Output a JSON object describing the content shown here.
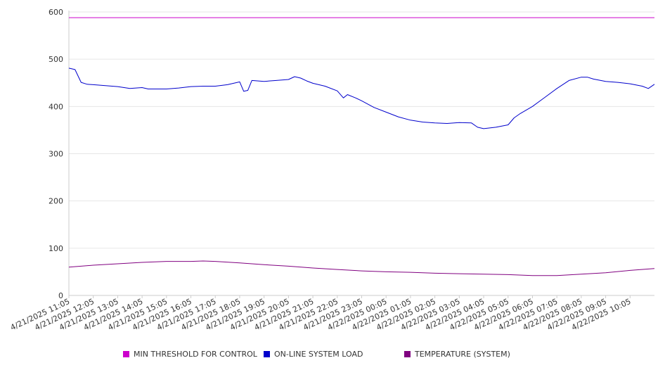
{
  "chart_data": {
    "type": "line",
    "title": "",
    "xlabel": "",
    "ylabel": "",
    "ylim": [
      0,
      600
    ],
    "yticks": [
      "0",
      "100",
      "200",
      "300",
      "400",
      "500",
      "600"
    ],
    "grid": true,
    "legend_position": "bottom",
    "xtick_labels": [
      "4/21/2025 11:05",
      "4/21/2025 12:05",
      "4/21/2025 13:05",
      "4/21/2025 14:05",
      "4/21/2025 15:05",
      "4/21/2025 16:05",
      "4/21/2025 17:05",
      "4/21/2025 18:05",
      "4/21/2025 19:05",
      "4/21/2025 20:05",
      "4/21/2025 21:05",
      "4/21/2025 22:05",
      "4/21/2025 23:05",
      "4/22/2025 00:05",
      "4/22/2025 01:05",
      "4/22/2025 02:05",
      "4/22/2025 03:05",
      "4/22/2025 04:05",
      "4/22/2025 05:05",
      "4/22/2025 06:05",
      "4/22/2025 07:05",
      "4/22/2025 08:05",
      "4/22/2025 09:05",
      "4/22/2025 10:05"
    ],
    "series": [
      {
        "name": "MIN THRESHOLD FOR CONTROL",
        "color": "#cc00cc",
        "points": [
          [
            "4/21/2025 11:05",
            588
          ],
          [
            "4/22/2025 11:05",
            588
          ]
        ]
      },
      {
        "name": "ON-LINE SYSTEM LOAD",
        "color": "#0000cc",
        "points": [
          [
            "4/21/2025 11:05",
            481
          ],
          [
            "4/21/2025 11:20",
            478
          ],
          [
            "4/21/2025 11:35",
            451
          ],
          [
            "4/21/2025 11:50",
            447
          ],
          [
            "4/21/2025 12:05",
            446
          ],
          [
            "4/21/2025 12:35",
            444
          ],
          [
            "4/21/2025 13:05",
            442
          ],
          [
            "4/21/2025 13:35",
            438
          ],
          [
            "4/21/2025 14:05",
            440
          ],
          [
            "4/21/2025 14:20",
            437
          ],
          [
            "4/21/2025 14:50",
            437
          ],
          [
            "4/21/2025 15:05",
            437
          ],
          [
            "4/21/2025 15:35",
            439
          ],
          [
            "4/21/2025 16:05",
            442
          ],
          [
            "4/21/2025 16:35",
            443
          ],
          [
            "4/21/2025 17:05",
            443
          ],
          [
            "4/21/2025 17:35",
            446
          ],
          [
            "4/21/2025 18:05",
            452
          ],
          [
            "4/21/2025 18:15",
            432
          ],
          [
            "4/21/2025 18:25",
            434
          ],
          [
            "4/21/2025 18:35",
            455
          ],
          [
            "4/21/2025 19:05",
            453
          ],
          [
            "4/21/2025 19:35",
            455
          ],
          [
            "4/21/2025 20:05",
            457
          ],
          [
            "4/21/2025 20:20",
            463
          ],
          [
            "4/21/2025 20:35",
            460
          ],
          [
            "4/21/2025 20:50",
            454
          ],
          [
            "4/21/2025 21:05",
            449
          ],
          [
            "4/21/2025 21:35",
            443
          ],
          [
            "4/21/2025 22:05",
            433
          ],
          [
            "4/21/2025 22:20",
            418
          ],
          [
            "4/21/2025 22:30",
            425
          ],
          [
            "4/21/2025 22:50",
            418
          ],
          [
            "4/21/2025 23:05",
            412
          ],
          [
            "4/21/2025 23:35",
            398
          ],
          [
            "4/22/2025 00:05",
            388
          ],
          [
            "4/22/2025 00:35",
            378
          ],
          [
            "4/22/2025 01:05",
            371
          ],
          [
            "4/22/2025 01:35",
            367
          ],
          [
            "4/22/2025 02:05",
            365
          ],
          [
            "4/22/2025 02:35",
            364
          ],
          [
            "4/22/2025 03:05",
            366
          ],
          [
            "4/22/2025 03:35",
            365
          ],
          [
            "4/22/2025 03:50",
            356
          ],
          [
            "4/22/2025 04:05",
            353
          ],
          [
            "4/22/2025 04:35",
            356
          ],
          [
            "4/22/2025 05:05",
            361
          ],
          [
            "4/22/2025 05:20",
            376
          ],
          [
            "4/22/2025 05:35",
            385
          ],
          [
            "4/22/2025 06:05",
            400
          ],
          [
            "4/22/2025 06:35",
            419
          ],
          [
            "4/22/2025 07:05",
            438
          ],
          [
            "4/22/2025 07:35",
            455
          ],
          [
            "4/22/2025 08:05",
            462
          ],
          [
            "4/22/2025 08:20",
            462
          ],
          [
            "4/22/2025 08:35",
            458
          ],
          [
            "4/22/2025 09:05",
            453
          ],
          [
            "4/22/2025 09:35",
            451
          ],
          [
            "4/22/2025 10:05",
            448
          ],
          [
            "4/22/2025 10:35",
            443
          ],
          [
            "4/22/2025 10:50",
            438
          ],
          [
            "4/22/2025 11:05",
            447
          ]
        ]
      },
      {
        "name": "TEMPERATURE (SYSTEM)",
        "color": "#800080",
        "points": [
          [
            "4/21/2025 11:05",
            60
          ],
          [
            "4/21/2025 12:05",
            64
          ],
          [
            "4/21/2025 13:05",
            67
          ],
          [
            "4/21/2025 14:05",
            70
          ],
          [
            "4/21/2025 15:05",
            72
          ],
          [
            "4/21/2025 16:05",
            72
          ],
          [
            "4/21/2025 16:35",
            73
          ],
          [
            "4/21/2025 17:05",
            72
          ],
          [
            "4/21/2025 18:05",
            69
          ],
          [
            "4/21/2025 19:05",
            65
          ],
          [
            "4/21/2025 20:05",
            62
          ],
          [
            "4/21/2025 21:05",
            58
          ],
          [
            "4/21/2025 22:05",
            55
          ],
          [
            "4/21/2025 23:05",
            52
          ],
          [
            "4/22/2025 00:05",
            50
          ],
          [
            "4/22/2025 01:05",
            49
          ],
          [
            "4/22/2025 02:05",
            47
          ],
          [
            "4/22/2025 03:05",
            46
          ],
          [
            "4/22/2025 04:05",
            45
          ],
          [
            "4/22/2025 05:05",
            44
          ],
          [
            "4/22/2025 06:05",
            42
          ],
          [
            "4/22/2025 07:05",
            42
          ],
          [
            "4/22/2025 08:05",
            45
          ],
          [
            "4/22/2025 09:05",
            48
          ],
          [
            "4/22/2025 10:05",
            53
          ],
          [
            "4/22/2025 11:05",
            57
          ]
        ]
      }
    ]
  }
}
